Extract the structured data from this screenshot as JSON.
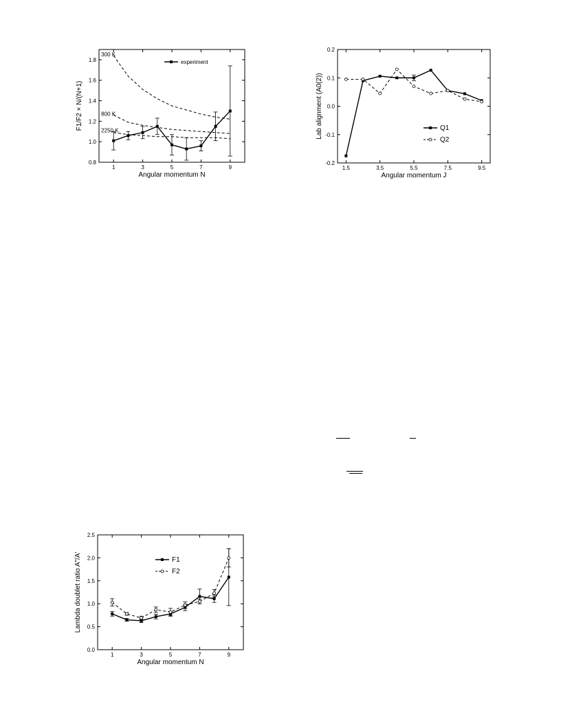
{
  "chart_data": [
    {
      "id": "f1f2",
      "type": "line",
      "xlabel": "Angular momentum N",
      "ylabel": "F1/F2 × N/(N+1)",
      "xlim": [
        0,
        10
      ],
      "ylim": [
        0.8,
        1.9
      ],
      "xticks": [
        1,
        3,
        5,
        7,
        9
      ],
      "yticks": [
        0.8,
        1.0,
        1.2,
        1.4,
        1.6,
        1.8
      ],
      "grid": false,
      "legend": "top-right",
      "series": [
        {
          "name": "experiment",
          "style": "solid-square",
          "x": [
            1,
            2,
            3,
            4,
            5,
            6,
            7,
            8,
            9
          ],
          "y": [
            1.01,
            1.06,
            1.09,
            1.15,
            0.97,
            0.93,
            0.96,
            1.15,
            1.3
          ],
          "err": [
            0.09,
            0.04,
            0.06,
            0.08,
            0.1,
            0.11,
            0.05,
            0.14,
            0.44
          ]
        },
        {
          "name": "",
          "style": "dashed",
          "x": [
            1,
            2,
            3,
            4,
            5,
            6,
            7,
            8,
            9
          ],
          "y": [
            1.84,
            1.64,
            1.51,
            1.42,
            1.35,
            1.31,
            1.27,
            1.24,
            1.22
          ]
        },
        {
          "name": "",
          "style": "dashed",
          "x": [
            1,
            2,
            3,
            4,
            5,
            6,
            7,
            8,
            9
          ],
          "y": [
            1.26,
            1.19,
            1.16,
            1.14,
            1.12,
            1.11,
            1.1,
            1.09,
            1.08
          ]
        },
        {
          "name": "",
          "style": "dashed",
          "x": [
            1,
            2,
            3,
            4,
            5,
            6,
            7,
            8,
            9
          ],
          "y": [
            1.09,
            1.07,
            1.06,
            1.05,
            1.05,
            1.04,
            1.04,
            1.04,
            1.03
          ]
        }
      ],
      "annotations": [
        {
          "text": "300 K",
          "x": 0.15,
          "y": 1.84
        },
        {
          "text": "800 K",
          "x": 0.15,
          "y": 1.26
        },
        {
          "text": "2250 K",
          "x": 0.15,
          "y": 1.1
        }
      ]
    },
    {
      "id": "lab",
      "type": "line",
      "xlabel": "Angular momentum J",
      "ylabel": "Lab alignment (A0(2))",
      "xlim": [
        1.0,
        10.0
      ],
      "ylim": [
        -0.2,
        0.2
      ],
      "xticks": [
        1.5,
        3.5,
        5.5,
        7.5,
        9.5
      ],
      "yticks": [
        -0.2,
        -0.1,
        0.0,
        0.1,
        0.2
      ],
      "grid": false,
      "legend": "bottom-right",
      "series": [
        {
          "name": "Q1",
          "style": "solid-square",
          "x": [
            1.5,
            2.5,
            3.5,
            4.5,
            5.5,
            6.5,
            7.5,
            8.5,
            9.5
          ],
          "y": [
            -0.175,
            0.09,
            0.106,
            0.1,
            0.1,
            0.127,
            0.055,
            0.044,
            0.02
          ],
          "err": [
            0,
            0,
            0,
            0,
            0.01,
            0,
            0,
            0,
            0
          ]
        },
        {
          "name": "Q2",
          "style": "dashed-circle",
          "x": [
            1.5,
            2.5,
            3.5,
            4.5,
            5.5,
            6.5,
            7.5,
            8.5,
            9.5
          ],
          "y": [
            0.095,
            0.095,
            0.045,
            0.13,
            0.07,
            0.045,
            0.055,
            0.025,
            0.016
          ]
        }
      ]
    },
    {
      "id": "lambda",
      "type": "line",
      "xlabel": "Angular momentum N",
      "ylabel": "Lambda doublet ratio A\"/A'",
      "xlim": [
        0,
        10
      ],
      "ylim": [
        0.0,
        2.5
      ],
      "xticks": [
        1,
        3,
        5,
        7,
        9
      ],
      "yticks": [
        0.0,
        0.5,
        1.0,
        1.5,
        2.0,
        2.5
      ],
      "grid": false,
      "legend": "top-center",
      "series": [
        {
          "name": "F1",
          "style": "solid-square",
          "x": [
            1,
            2,
            3,
            4,
            5,
            6,
            7,
            8,
            9
          ],
          "y": [
            0.78,
            0.65,
            0.63,
            0.72,
            0.78,
            0.92,
            1.16,
            1.11,
            1.58
          ],
          "err": [
            0.05,
            0.03,
            0.04,
            0.05,
            0.05,
            0.07,
            0.16,
            0.08,
            0.62
          ]
        },
        {
          "name": "F2",
          "style": "dashed-circle",
          "x": [
            1,
            2,
            3,
            4,
            5,
            6,
            7,
            8,
            9
          ],
          "y": [
            1.03,
            0.78,
            0.69,
            0.87,
            0.82,
            0.97,
            1.05,
            1.23,
            2.0
          ],
          "err": [
            0.08,
            0.03,
            0.04,
            0.06,
            0.08,
            0.07,
            0.05,
            0.08,
            0.2
          ]
        }
      ]
    }
  ]
}
